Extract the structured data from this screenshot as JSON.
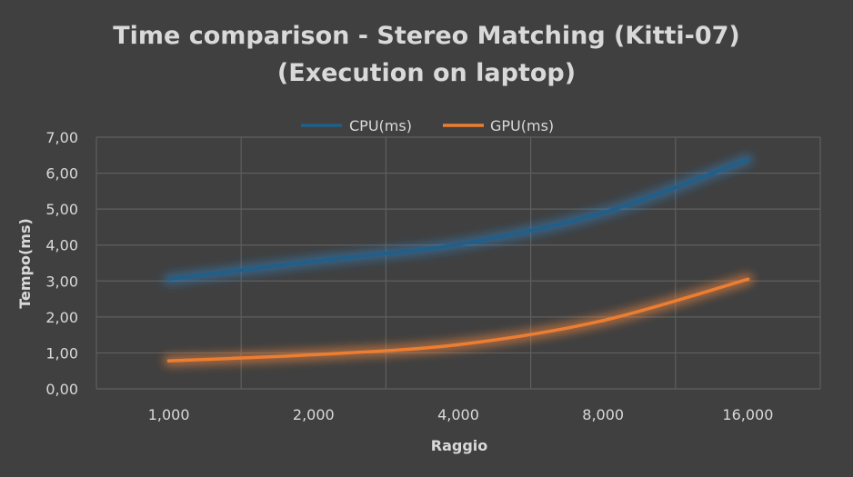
{
  "chart_data": {
    "type": "line",
    "title_line1": "Time comparison - Stereo Matching (Kitti-07)",
    "title_line2": "(Execution on laptop)",
    "xlabel": "Raggio",
    "ylabel": "Tempo(ms)",
    "categories": [
      "1,000",
      "2,000",
      "4,000",
      "8,000",
      "16,000"
    ],
    "y_ticks": [
      "0,00",
      "1,00",
      "2,00",
      "3,00",
      "4,00",
      "5,00",
      "6,00",
      "7,00"
    ],
    "ylim": [
      0,
      7
    ],
    "grid": true,
    "legend_position": "top-center",
    "series": [
      {
        "name": "CPU(ms)",
        "color": "#1f5f8b",
        "glow": "#2f7fc0",
        "values": [
          3.05,
          3.55,
          4.02,
          4.9,
          6.38
        ]
      },
      {
        "name": "GPU(ms)",
        "color": "#ed7d31",
        "glow": "#ff8c40",
        "values": [
          0.78,
          0.95,
          1.23,
          1.9,
          3.05
        ]
      }
    ]
  }
}
